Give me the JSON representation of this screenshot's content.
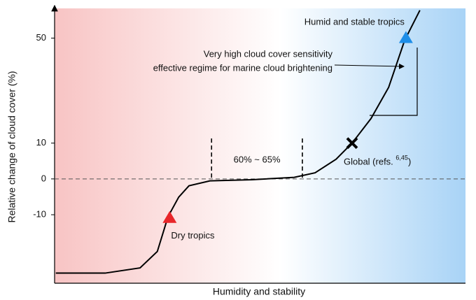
{
  "chart_data": {
    "type": "line",
    "y_label": "Relative change of cloud cover (%)",
    "x_label": "Humidity and stability",
    "yscale": "symlog",
    "linthresh": 60,
    "xlim": [
      0,
      100
    ],
    "ylim": [
      -34,
      65
    ],
    "yticks": [
      -10,
      0,
      10,
      50
    ],
    "zero_line": true,
    "series": [
      {
        "color": "#000000",
        "x": [
          0.3,
          12.3,
          20.8,
          25,
          27.6,
          30.2,
          32.7,
          37.8,
          48,
          58.3,
          63.4,
          68.5,
          72.4,
          77,
          81.3,
          85.2,
          88.9
        ],
        "values": [
          -30,
          -30,
          -28,
          -22,
          -10.6,
          -4.9,
          -1.8,
          -0.5,
          -0.2,
          0.4,
          1.6,
          5.3,
          10,
          17.8,
          29,
          49,
          64
        ]
      }
    ],
    "markers": [
      {
        "label": [
          "Dry tropics"
        ],
        "x": 28,
        "y": -11,
        "shape": "triangle",
        "color": "#e8262a"
      },
      {
        "label": [
          "Global (refs. ",
          "6,45",
          ")"
        ],
        "x": 72.4,
        "y": 10,
        "shape": "cross",
        "color": "#000000"
      },
      {
        "label": [
          "Humid and stable tropics"
        ],
        "x": 85.5,
        "y": 50,
        "shape": "triangle",
        "color": "#1e8ee8"
      }
    ],
    "range": {
      "label": "60% ~ 65%",
      "x": [
        38.2,
        60.3
      ]
    },
    "annotation": [
      "Very high cloud cover sensitivity",
      "effective regime for marine cloud brightening"
    ]
  }
}
